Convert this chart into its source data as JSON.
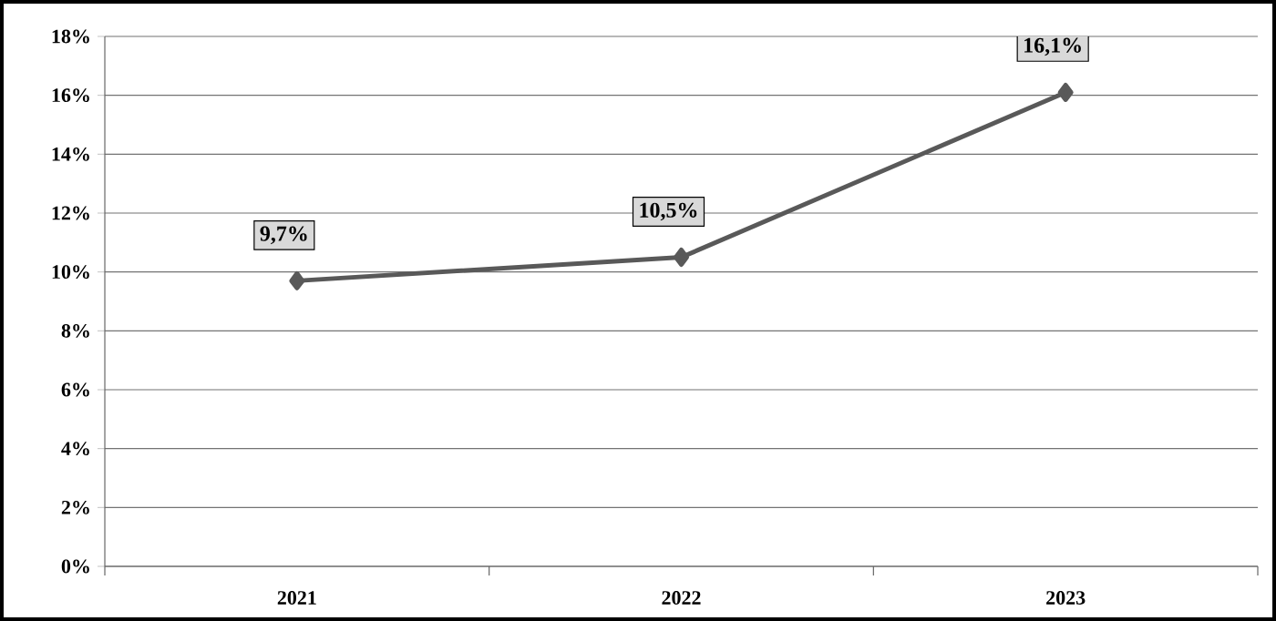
{
  "chart_data": {
    "type": "line",
    "categories": [
      "2021",
      "2022",
      "2023"
    ],
    "series": [
      {
        "color": "#595959",
        "values": [
          9.7,
          10.5,
          16.1
        ],
        "value_labels": [
          "9,7%",
          "10,5%",
          "16,1%"
        ]
      }
    ],
    "ylim": [
      0,
      18
    ],
    "yticks": [
      {
        "value": 0,
        "label": "0%"
      },
      {
        "value": 2,
        "label": "2%"
      },
      {
        "value": 4,
        "label": "4%"
      },
      {
        "value": 6,
        "label": "6%"
      },
      {
        "value": 8,
        "label": "8%"
      },
      {
        "value": 10,
        "label": "10%"
      },
      {
        "value": 12,
        "label": "12%"
      },
      {
        "value": 14,
        "label": "14%"
      },
      {
        "value": 16,
        "label": "16%"
      },
      {
        "value": 18,
        "label": "18%"
      }
    ],
    "grid": "y",
    "marker": "diamond",
    "line_style": "solid"
  }
}
